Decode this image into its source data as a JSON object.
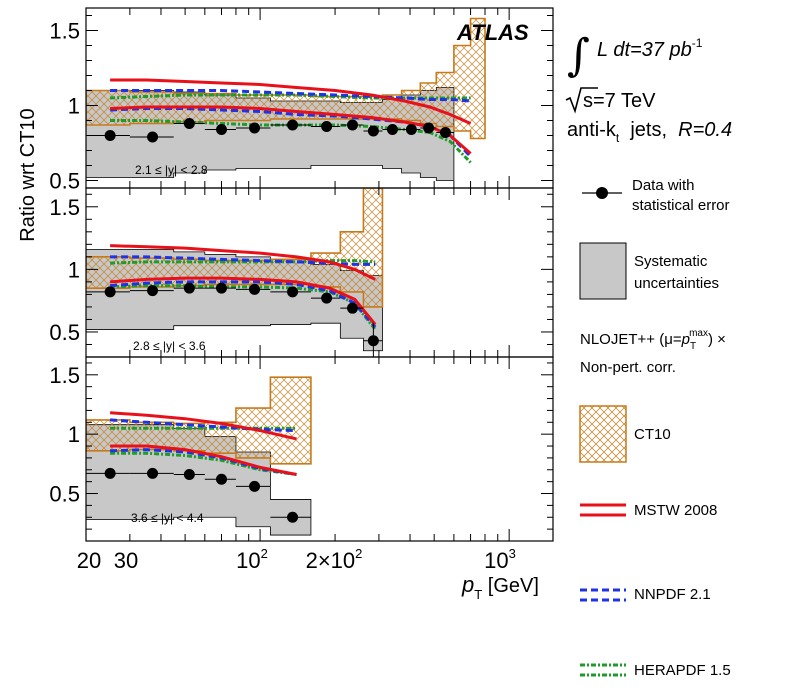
{
  "colors": {
    "ct10": "#c77a1a",
    "mstw": "#e8111a",
    "nnpdf": "#1e32e6",
    "herapdf": "#1e9b28",
    "syst": "#c8c8c8",
    "data": "#000000"
  },
  "labels": {
    "ylabel": "Ratio wrt CT10",
    "xlabel_main": "p",
    "xlabel_sub": "T",
    "xlabel_unit": " [GeV]",
    "atlas": "ATLAS",
    "lumi_text": "L dt=37 pb",
    "lumi_sup": "-1",
    "sqrt_s": "s=7 TeV",
    "algo": "anti-k",
    "algo_sub": "t",
    "algo_rest": "  jets,  ",
    "r_param": "R=0.4",
    "nlo_line1a": "NLOJET++ (μ=",
    "nlo_p": "p",
    "nlo_sup": "max",
    "nlo_sub": "T",
    "nlo_line1b": ") ×",
    "nlo_line2": "Non-pert. corr.",
    "xticks": [
      "20",
      "30",
      "10",
      "2",
      "2×10",
      "2",
      "10",
      "3"
    ]
  },
  "legend": {
    "data_line1": "Data with",
    "data_line2": "statistical error",
    "syst_line1": "Systematic",
    "syst_line2": "uncertainties",
    "ct10": "CT10",
    "mstw": "MSTW 2008",
    "nnpdf": "NNPDF 2.1",
    "herapdf": "HERAPDF 1.5"
  },
  "chart_data": {
    "type": "line",
    "x_scale": "log",
    "xlim": [
      20,
      1500
    ],
    "xlabel": "p_T [GeV]",
    "ylabel": "Ratio wrt CT10",
    "panels": [
      {
        "label": "2.1 ≤ |y| < 2.8",
        "ylim": [
          0.45,
          1.65
        ],
        "yticks": [
          "0.5",
          "1",
          "1.5"
        ],
        "bins": [
          20,
          30,
          45,
          60,
          80,
          110,
          160,
          210,
          260,
          310,
          370,
          440,
          510,
          600,
          700,
          800
        ],
        "data_x": [
          25,
          37,
          52,
          70,
          95,
          135,
          185,
          235,
          285,
          340,
          405,
          475,
          555
        ],
        "data_y": [
          0.8,
          0.79,
          0.88,
          0.84,
          0.85,
          0.87,
          0.86,
          0.87,
          0.83,
          0.84,
          0.84,
          0.85,
          0.82
        ],
        "syst_lo": [
          0.52,
          0.52,
          0.55,
          0.57,
          0.58,
          0.58,
          0.6,
          0.6,
          0.6,
          0.58,
          0.55,
          0.52,
          0.5
        ],
        "syst_hi": [
          1.1,
          1.1,
          1.09,
          1.07,
          1.05,
          1.03,
          1.03,
          1.02,
          1.02,
          1.04,
          1.07,
          1.1,
          1.12
        ],
        "ct10_lo": [
          0.87,
          0.88,
          0.89,
          0.9,
          0.9,
          0.91,
          0.91,
          0.91,
          0.91,
          0.91,
          0.9,
          0.88,
          0.86,
          0.83,
          0.78
        ],
        "ct10_hi": [
          1.1,
          1.09,
          1.08,
          1.08,
          1.07,
          1.07,
          1.06,
          1.06,
          1.06,
          1.07,
          1.1,
          1.15,
          1.22,
          1.4,
          1.58
        ],
        "curve_x": [
          25,
          35,
          50,
          70,
          100,
          140,
          200,
          280,
          380,
          480,
          580,
          700
        ],
        "mstw_up": [
          1.17,
          1.17,
          1.16,
          1.15,
          1.14,
          1.12,
          1.1,
          1.07,
          1.03,
          0.99,
          0.94,
          0.88
        ],
        "mstw_lo": [
          0.98,
          0.99,
          0.99,
          0.99,
          0.98,
          0.96,
          0.94,
          0.92,
          0.89,
          0.86,
          0.8,
          0.68
        ],
        "nnpdf_up": [
          1.1,
          1.1,
          1.1,
          1.1,
          1.09,
          1.08,
          1.07,
          1.06,
          1.05,
          1.04,
          1.04,
          1.03
        ],
        "nnpdf_lo": [
          0.97,
          0.98,
          0.98,
          0.97,
          0.96,
          0.94,
          0.93,
          0.91,
          0.89,
          0.86,
          0.8,
          0.66
        ],
        "hera_up": [
          1.05,
          1.06,
          1.07,
          1.07,
          1.07,
          1.07,
          1.06,
          1.05,
          1.05,
          1.05,
          1.05,
          1.05
        ],
        "hera_lo": [
          0.9,
          0.9,
          0.89,
          0.88,
          0.87,
          0.87,
          0.87,
          0.86,
          0.84,
          0.82,
          0.76,
          0.62
        ]
      },
      {
        "label": "2.8 ≤ |y| < 3.6",
        "ylim": [
          0.3,
          1.65
        ],
        "yticks": [
          "0.5",
          "1",
          "1.5"
        ],
        "bins": [
          20,
          30,
          45,
          60,
          80,
          110,
          160,
          210,
          260,
          310
        ],
        "data_x": [
          25,
          37,
          52,
          70,
          95,
          135,
          185,
          235,
          285
        ],
        "data_y": [
          0.82,
          0.83,
          0.85,
          0.85,
          0.84,
          0.82,
          0.77,
          0.69,
          0.43
        ],
        "syst_lo": [
          0.52,
          0.52,
          0.55,
          0.55,
          0.55,
          0.56,
          0.57,
          0.45,
          0.35
        ],
        "syst_hi": [
          1.16,
          1.16,
          1.14,
          1.12,
          1.1,
          1.08,
          1.04,
          0.99,
          0.95
        ],
        "ct10_lo": [
          0.85,
          0.86,
          0.87,
          0.88,
          0.88,
          0.88,
          0.86,
          0.82,
          0.7
        ],
        "ct10_hi": [
          1.1,
          1.09,
          1.08,
          1.07,
          1.07,
          1.08,
          1.13,
          1.3,
          1.65
        ],
        "curve_x": [
          25,
          35,
          50,
          70,
          100,
          140,
          190,
          240,
          290
        ],
        "mstw_up": [
          1.19,
          1.18,
          1.17,
          1.15,
          1.13,
          1.1,
          1.06,
          1.0,
          0.92
        ],
        "mstw_lo": [
          0.9,
          0.92,
          0.93,
          0.93,
          0.92,
          0.9,
          0.85,
          0.76,
          0.56
        ],
        "nnpdf_up": [
          1.1,
          1.1,
          1.09,
          1.08,
          1.07,
          1.06,
          1.05,
          1.04,
          1.04
        ],
        "nnpdf_lo": [
          0.87,
          0.89,
          0.9,
          0.9,
          0.9,
          0.88,
          0.83,
          0.73,
          0.54
        ],
        "hera_up": [
          1.05,
          1.06,
          1.06,
          1.06,
          1.06,
          1.06,
          1.07,
          1.07,
          1.06
        ],
        "hera_lo": [
          0.86,
          0.87,
          0.87,
          0.86,
          0.86,
          0.85,
          0.82,
          0.73,
          0.52
        ]
      },
      {
        "label": "3.6 ≤ |y| < 4.4",
        "ylim": [
          0.1,
          1.65
        ],
        "yticks": [
          "0.5",
          "1",
          "1.5"
        ],
        "bins": [
          20,
          30,
          45,
          60,
          80,
          110,
          160
        ],
        "data_x": [
          25,
          37,
          52,
          70,
          95,
          135
        ],
        "data_y": [
          0.67,
          0.67,
          0.66,
          0.62,
          0.56,
          0.3
        ],
        "syst_lo": [
          0.28,
          0.28,
          0.3,
          0.3,
          0.22,
          0.15
        ],
        "syst_hi": [
          1.08,
          1.08,
          1.05,
          0.98,
          0.85,
          0.45
        ],
        "ct10_lo": [
          0.86,
          0.87,
          0.86,
          0.84,
          0.8,
          0.75
        ],
        "ct10_hi": [
          1.12,
          1.1,
          1.09,
          1.1,
          1.22,
          1.48
        ],
        "curve_x": [
          25,
          35,
          50,
          70,
          100,
          140
        ],
        "mstw_up": [
          1.18,
          1.16,
          1.13,
          1.09,
          1.03,
          0.96
        ],
        "mstw_lo": [
          0.9,
          0.9,
          0.87,
          0.81,
          0.72,
          0.66
        ],
        "nnpdf_up": [
          1.12,
          1.1,
          1.08,
          1.06,
          1.04,
          1.03
        ],
        "nnpdf_lo": [
          0.86,
          0.87,
          0.85,
          0.8,
          0.71,
          0.66
        ],
        "hera_up": [
          1.05,
          1.05,
          1.05,
          1.05,
          1.05,
          1.05
        ],
        "hera_lo": [
          0.84,
          0.84,
          0.82,
          0.78,
          0.7,
          0.66
        ]
      }
    ]
  }
}
